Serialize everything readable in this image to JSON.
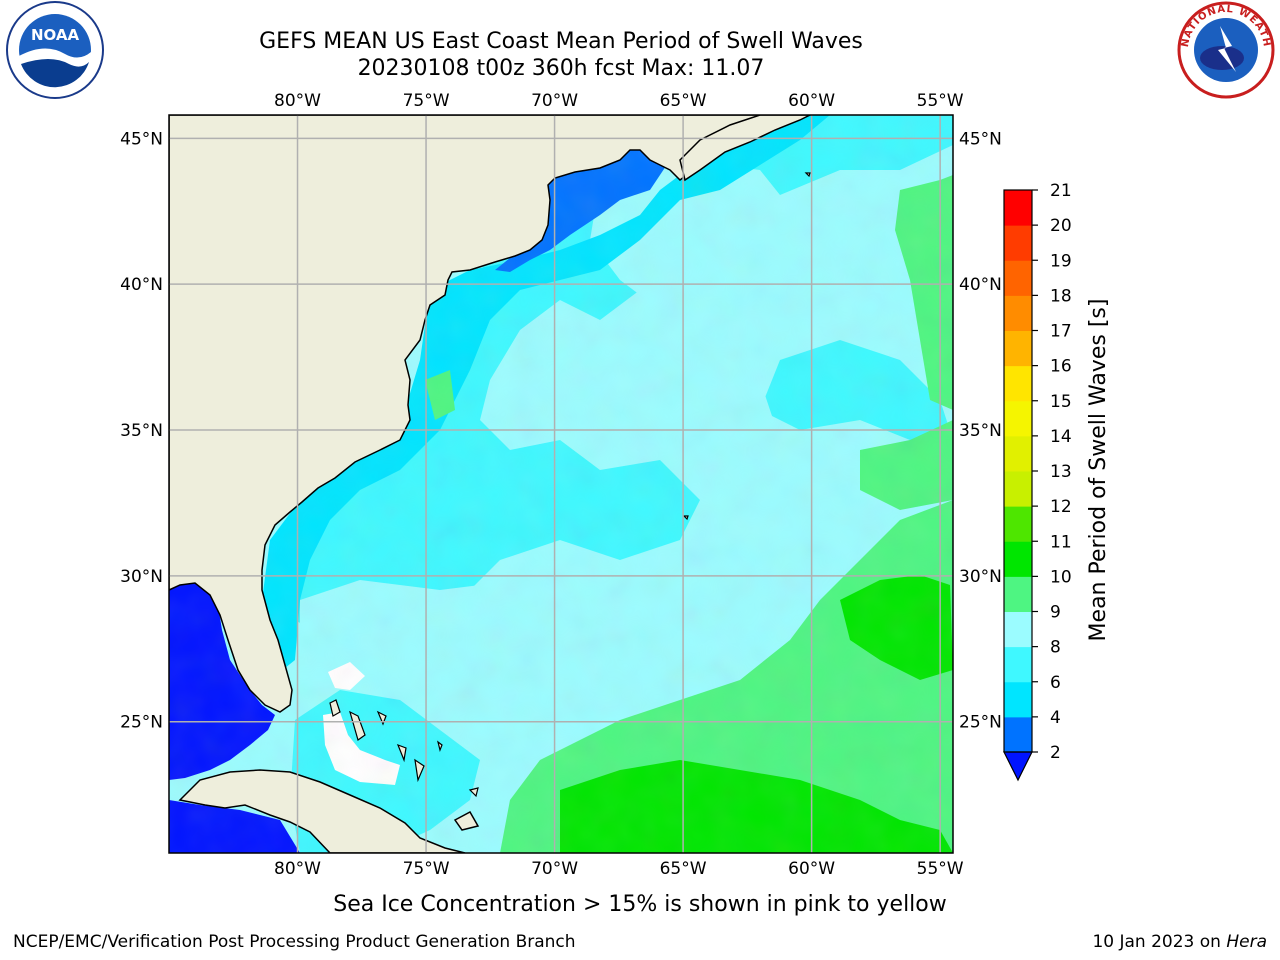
{
  "title": {
    "line1": "GEFS MEAN US East Coast Mean Period of Swell Waves",
    "line2": "20230108 t00z 360h fcst   Max: 11.07"
  },
  "note": "Sea Ice Concentration > 15% is shown in pink to yellow",
  "footer": {
    "left": "NCEP/EMC/Verification Post Processing Product Generation Branch",
    "right_date": "10 Jan 2023 on",
    "right_host": "Hera"
  },
  "logos": {
    "left": {
      "icon": "noaa-logo",
      "text": "NOAA"
    },
    "right": {
      "icon": "nws-logo",
      "text": "NATIONAL WEATHER SERVICE"
    }
  },
  "map": {
    "lon_ticks": [
      "80°W",
      "75°W",
      "70°W",
      "65°W",
      "60°W",
      "55°W"
    ],
    "lat_ticks": [
      "45°N",
      "40°N",
      "35°N",
      "30°N",
      "25°N"
    ],
    "lon_values": [
      -80,
      -75,
      -70,
      -65,
      -60,
      -55
    ],
    "lat_values": [
      45,
      40,
      35,
      30,
      25
    ],
    "lon_range": [
      -85,
      -54.5
    ],
    "lat_range": [
      20.5,
      45.8
    ],
    "land_color": "#eeeedc",
    "grid_color": "#b0b0b0",
    "coast_color": "#000000"
  },
  "colorbar": {
    "label": "Mean Period of Swell Waves [s]",
    "ticks": [
      "2",
      "4",
      "6",
      "8",
      "9",
      "10",
      "11",
      "12",
      "13",
      "14",
      "15",
      "16",
      "17",
      "18",
      "19",
      "20",
      "21"
    ],
    "bands": [
      {
        "from": 2,
        "to": 4,
        "color": "#0073ff"
      },
      {
        "from": 4,
        "to": 6,
        "color": "#00e5ff"
      },
      {
        "from": 6,
        "to": 8,
        "color": "#3ff8ff"
      },
      {
        "from": 8,
        "to": 9,
        "color": "#9bfcff"
      },
      {
        "from": 9,
        "to": 10,
        "color": "#4ef582"
      },
      {
        "from": 10,
        "to": 11,
        "color": "#00e600"
      },
      {
        "from": 11,
        "to": 12,
        "color": "#4ee600"
      },
      {
        "from": 12,
        "to": 13,
        "color": "#c8f000"
      },
      {
        "from": 13,
        "to": 14,
        "color": "#e1f000"
      },
      {
        "from": 14,
        "to": 15,
        "color": "#f5f500"
      },
      {
        "from": 15,
        "to": 16,
        "color": "#ffe500"
      },
      {
        "from": 16,
        "to": 17,
        "color": "#ffb400"
      },
      {
        "from": 17,
        "to": 18,
        "color": "#ff8c00"
      },
      {
        "from": 18,
        "to": 19,
        "color": "#ff6400"
      },
      {
        "from": 19,
        "to": 20,
        "color": "#ff3c00"
      },
      {
        "from": 20,
        "to": 21,
        "color": "#ff0000"
      }
    ],
    "under_color": "#0014ff"
  },
  "regions": [
    {
      "name": "gulf-of-mexico",
      "value": 1.5,
      "color": "#0014ff"
    },
    {
      "name": "gulf-of-maine-shelf",
      "value": 3,
      "color": "#0073ff"
    },
    {
      "name": "coastal-shelf",
      "value": 5,
      "color": "#00e5ff"
    },
    {
      "name": "open-atlantic",
      "value": 7,
      "color": "#3ff8ff"
    },
    {
      "name": "central-atlantic",
      "value": 8.5,
      "color": "#9bfcff"
    },
    {
      "name": "southeast-atlantic",
      "value": 9.5,
      "color": "#4ef582"
    },
    {
      "name": "subtropical-maxima",
      "value": 10.5,
      "color": "#00e600"
    }
  ]
}
